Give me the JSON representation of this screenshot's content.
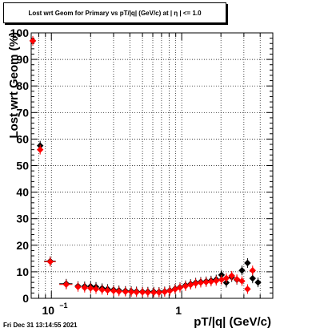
{
  "title": "Lost wrt Geom for Primary vs pT/|q| (GeV/c) at |  η  | <= 1.0",
  "footer_date": "Fri Dec 31 13:14:55 2021",
  "colors": {
    "series_black": "#000000",
    "series_red": "#ff0000",
    "grid": "#000000"
  },
  "chart_data": {
    "type": "scatter",
    "title": "Lost wrt Geom for Primary vs pT/|q| (GeV/c) at |  η  | <= 1.0",
    "xlabel": "pT/|q| (GeV/c)",
    "ylabel": "Lost wrt Geom (%)",
    "x_scale": "log",
    "xlim": [
      0.07,
      5.0
    ],
    "ylim": [
      0,
      100
    ],
    "grid": true,
    "x_ticks": [
      {
        "value": 0.1,
        "base": "10",
        "exp": "−1"
      },
      {
        "value": 1,
        "base": "1",
        "exp": ""
      }
    ],
    "y_ticks": [
      0,
      10,
      20,
      30,
      40,
      50,
      60,
      70,
      80,
      90,
      100
    ],
    "series": [
      {
        "color": "#000000",
        "points": [
          {
            "x": 0.072,
            "y": 97,
            "xerr": 0.003
          },
          {
            "x": 0.082,
            "y": 57.5,
            "xerr": 0.004
          },
          {
            "x": 0.098,
            "y": 14,
            "xerr": 0.01
          },
          {
            "x": 0.13,
            "y": 5.5,
            "xerr": 0.015
          },
          {
            "x": 0.16,
            "y": 4.6
          },
          {
            "x": 0.18,
            "y": 4.5
          },
          {
            "x": 0.2,
            "y": 4.5
          },
          {
            "x": 0.22,
            "y": 4.3
          },
          {
            "x": 0.245,
            "y": 3.8
          },
          {
            "x": 0.27,
            "y": 3.5
          },
          {
            "x": 0.3,
            "y": 3.2
          },
          {
            "x": 0.33,
            "y": 3.0
          },
          {
            "x": 0.37,
            "y": 2.8
          },
          {
            "x": 0.41,
            "y": 2.7
          },
          {
            "x": 0.45,
            "y": 2.6
          },
          {
            "x": 0.5,
            "y": 2.5
          },
          {
            "x": 0.55,
            "y": 2.5
          },
          {
            "x": 0.61,
            "y": 2.5
          },
          {
            "x": 0.67,
            "y": 2.4
          },
          {
            "x": 0.74,
            "y": 2.6
          },
          {
            "x": 0.81,
            "y": 3.0
          },
          {
            "x": 0.89,
            "y": 3.6
          },
          {
            "x": 0.97,
            "y": 4.2
          },
          {
            "x": 1.07,
            "y": 4.9
          },
          {
            "x": 1.17,
            "y": 5.4
          },
          {
            "x": 1.28,
            "y": 5.9
          },
          {
            "x": 1.4,
            "y": 6.2
          },
          {
            "x": 1.54,
            "y": 6.4
          },
          {
            "x": 1.68,
            "y": 6.7
          },
          {
            "x": 1.84,
            "y": 7.1
          },
          {
            "x": 2.02,
            "y": 8.8
          },
          {
            "x": 2.2,
            "y": 5.9
          },
          {
            "x": 2.42,
            "y": 8.0
          },
          {
            "x": 2.65,
            "y": 7.0
          },
          {
            "x": 2.9,
            "y": 10.5
          },
          {
            "x": 3.2,
            "y": 13.3
          },
          {
            "x": 3.5,
            "y": 7.5
          },
          {
            "x": 3.85,
            "y": 6.0
          }
        ]
      },
      {
        "color": "#ff0000",
        "points": [
          {
            "x": 0.072,
            "y": 97,
            "xerr": 0.003
          },
          {
            "x": 0.082,
            "y": 56,
            "xerr": 0.004
          },
          {
            "x": 0.098,
            "y": 13.8,
            "xerr": 0.01
          },
          {
            "x": 0.13,
            "y": 5.2,
            "xerr": 0.015
          },
          {
            "x": 0.16,
            "y": 4.3
          },
          {
            "x": 0.18,
            "y": 4.0
          },
          {
            "x": 0.2,
            "y": 3.8
          },
          {
            "x": 0.22,
            "y": 3.5
          },
          {
            "x": 0.245,
            "y": 3.2
          },
          {
            "x": 0.27,
            "y": 3.0
          },
          {
            "x": 0.3,
            "y": 2.8
          },
          {
            "x": 0.33,
            "y": 2.6
          },
          {
            "x": 0.37,
            "y": 2.5
          },
          {
            "x": 0.41,
            "y": 2.4
          },
          {
            "x": 0.45,
            "y": 2.3
          },
          {
            "x": 0.5,
            "y": 2.3
          },
          {
            "x": 0.55,
            "y": 2.2
          },
          {
            "x": 0.61,
            "y": 2.2
          },
          {
            "x": 0.67,
            "y": 2.2
          },
          {
            "x": 0.74,
            "y": 2.4
          },
          {
            "x": 0.81,
            "y": 2.8
          },
          {
            "x": 0.89,
            "y": 3.4
          },
          {
            "x": 0.97,
            "y": 4.0
          },
          {
            "x": 1.07,
            "y": 4.6
          },
          {
            "x": 1.17,
            "y": 5.1
          },
          {
            "x": 1.28,
            "y": 5.6
          },
          {
            "x": 1.4,
            "y": 5.9
          },
          {
            "x": 1.54,
            "y": 6.1
          },
          {
            "x": 1.68,
            "y": 6.3
          },
          {
            "x": 1.84,
            "y": 6.6
          },
          {
            "x": 2.02,
            "y": 7.0
          },
          {
            "x": 2.2,
            "y": 7.6
          },
          {
            "x": 2.42,
            "y": 8.5
          },
          {
            "x": 2.65,
            "y": 7.2
          },
          {
            "x": 2.9,
            "y": 6.5
          },
          {
            "x": 3.2,
            "y": 3.5
          },
          {
            "x": 3.5,
            "y": 10.5
          }
        ]
      }
    ]
  }
}
